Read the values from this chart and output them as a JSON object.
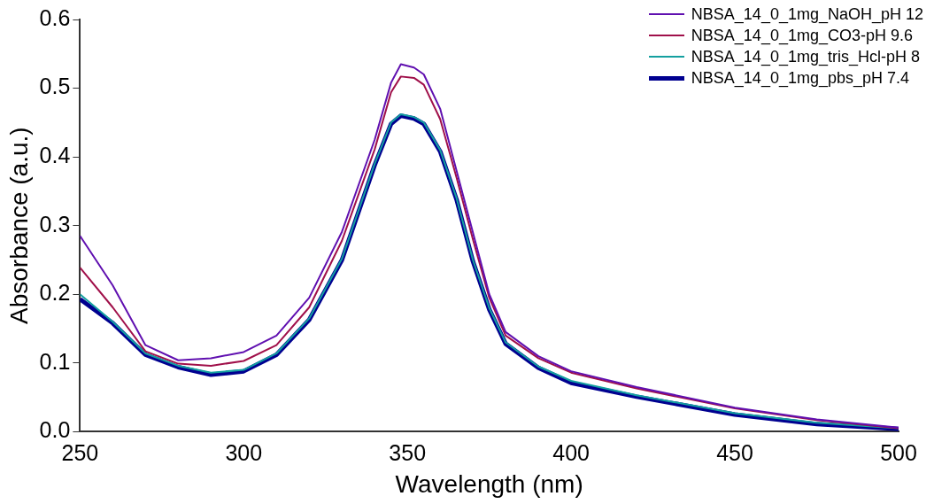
{
  "chart_data": {
    "type": "line",
    "xlabel": "Wavelength (nm)",
    "ylabel": "Absorbance (a.u.)",
    "xlim": [
      250,
      500
    ],
    "xticks": [
      250,
      300,
      350,
      400,
      450,
      500
    ],
    "ylim": [
      0,
      0.6
    ],
    "yticks": [
      {
        "value": 0,
        "label": "0.0"
      },
      0.1,
      0.2,
      0.3,
      0.4,
      0.5,
      0.6
    ],
    "grid": false,
    "legend": "top right",
    "marker": "none",
    "line_style": "solid",
    "x": [
      250,
      260,
      270,
      280,
      290,
      300,
      310,
      320,
      330,
      340,
      345,
      348,
      352,
      355,
      360,
      365,
      370,
      375,
      380,
      390,
      400,
      420,
      450,
      475,
      500
    ],
    "series": [
      {
        "name": "NBSA_14_0_1mg_NaOH_pH 12",
        "color": "#6010b0",
        "values": [
          0.285,
          0.213,
          0.126,
          0.104,
          0.107,
          0.116,
          0.14,
          0.195,
          0.291,
          0.425,
          0.508,
          0.535,
          0.53,
          0.52,
          0.47,
          0.38,
          0.29,
          0.2,
          0.145,
          0.11,
          0.088,
          0.065,
          0.035,
          0.018,
          0.006
        ]
      },
      {
        "name": "NBSA_14_0_1mg_CO3-pH 9.6",
        "color": "#a0104a",
        "values": [
          0.239,
          0.181,
          0.117,
          0.099,
          0.096,
          0.103,
          0.126,
          0.181,
          0.278,
          0.411,
          0.494,
          0.517,
          0.515,
          0.505,
          0.455,
          0.37,
          0.28,
          0.195,
          0.14,
          0.107,
          0.086,
          0.063,
          0.034,
          0.017,
          0.005
        ]
      },
      {
        "name": "NBSA_14_0_1mg_tris_Hcl-pH 8",
        "color": "#14a0a0",
        "values": [
          0.2,
          0.16,
          0.114,
          0.096,
          0.086,
          0.09,
          0.114,
          0.165,
          0.252,
          0.39,
          0.45,
          0.462,
          0.458,
          0.45,
          0.41,
          0.34,
          0.25,
          0.18,
          0.13,
          0.095,
          0.074,
          0.053,
          0.027,
          0.013,
          0.005
        ]
      },
      {
        "name": "NBSA_14_0_1mg_pbs_pH 7.4",
        "color": "#000090",
        "values": [
          0.193,
          0.158,
          0.112,
          0.094,
          0.083,
          0.088,
          0.112,
          0.163,
          0.25,
          0.388,
          0.448,
          0.46,
          0.456,
          0.448,
          0.408,
          0.338,
          0.248,
          0.178,
          0.128,
          0.093,
          0.071,
          0.051,
          0.025,
          0.011,
          0.004
        ]
      }
    ]
  }
}
